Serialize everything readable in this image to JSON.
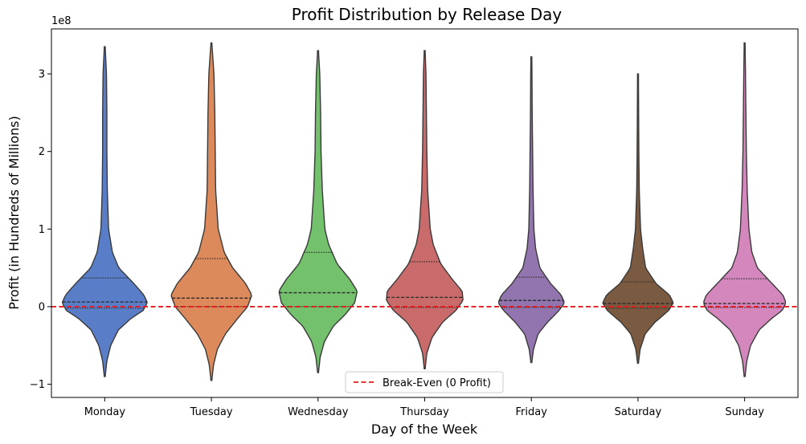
{
  "chart_data": {
    "type": "violin",
    "title": "Profit Distribution by Release Day",
    "xlabel": "Day of the Week",
    "ylabel": "Profit (in Hundreds of Millions)",
    "y_offset_label": "1e8",
    "ylim": [
      -1.17,
      3.58
    ],
    "yticks": [
      -1,
      0,
      1,
      2,
      3
    ],
    "ytick_labels": [
      "−1",
      "0",
      "1",
      "2",
      "3"
    ],
    "grid": false,
    "legend": {
      "position": "bottom-center",
      "entries": [
        {
          "label": "Break-Even (0 Profit)",
          "color": "#e41a1c",
          "style": "dashed"
        }
      ]
    },
    "reference_line": {
      "y": 0,
      "label": "Break-Even (0 Profit)",
      "color": "#e41a1c"
    },
    "categories": [
      "Monday",
      "Tuesday",
      "Wednesday",
      "Thursday",
      "Friday",
      "Saturday",
      "Sunday"
    ],
    "series": [
      {
        "category": "Monday",
        "color": "#5A7DC7",
        "min": -0.9,
        "max": 3.35,
        "q1": -0.02,
        "median": 0.06,
        "q3": 0.37,
        "profile": [
          [
            -0.9,
            0.01
          ],
          [
            -0.7,
            0.05
          ],
          [
            -0.5,
            0.14
          ],
          [
            -0.3,
            0.32
          ],
          [
            -0.15,
            0.62
          ],
          [
            -0.05,
            0.9
          ],
          [
            0.05,
            1.0
          ],
          [
            0.15,
            0.92
          ],
          [
            0.3,
            0.68
          ],
          [
            0.5,
            0.33
          ],
          [
            0.7,
            0.18
          ],
          [
            1.0,
            0.09
          ],
          [
            1.5,
            0.06
          ],
          [
            2.0,
            0.05
          ],
          [
            2.5,
            0.05
          ],
          [
            3.0,
            0.04
          ],
          [
            3.35,
            0.01
          ]
        ]
      },
      {
        "category": "Tuesday",
        "color": "#DC8A5C",
        "min": -0.95,
        "max": 3.4,
        "q1": 0.0,
        "median": 0.11,
        "q3": 0.62,
        "profile": [
          [
            -0.95,
            0.01
          ],
          [
            -0.75,
            0.05
          ],
          [
            -0.55,
            0.14
          ],
          [
            -0.35,
            0.33
          ],
          [
            -0.15,
            0.62
          ],
          [
            0.0,
            0.85
          ],
          [
            0.15,
            0.95
          ],
          [
            0.3,
            0.8
          ],
          [
            0.5,
            0.5
          ],
          [
            0.7,
            0.3
          ],
          [
            1.0,
            0.16
          ],
          [
            1.5,
            0.1
          ],
          [
            2.0,
            0.09
          ],
          [
            2.5,
            0.08
          ],
          [
            3.0,
            0.06
          ],
          [
            3.4,
            0.01
          ]
        ]
      },
      {
        "category": "Wednesday",
        "color": "#73C06D",
        "min": -0.85,
        "max": 3.3,
        "q1": 0.0,
        "median": 0.18,
        "q3": 0.7,
        "profile": [
          [
            -0.85,
            0.01
          ],
          [
            -0.65,
            0.05
          ],
          [
            -0.45,
            0.15
          ],
          [
            -0.25,
            0.36
          ],
          [
            -0.1,
            0.64
          ],
          [
            0.05,
            0.86
          ],
          [
            0.2,
            0.92
          ],
          [
            0.35,
            0.75
          ],
          [
            0.55,
            0.45
          ],
          [
            0.8,
            0.25
          ],
          [
            1.0,
            0.16
          ],
          [
            1.5,
            0.1
          ],
          [
            2.0,
            0.07
          ],
          [
            2.5,
            0.06
          ],
          [
            3.0,
            0.04
          ],
          [
            3.3,
            0.01
          ]
        ]
      },
      {
        "category": "Thursday",
        "color": "#C96B6B",
        "min": -0.8,
        "max": 3.3,
        "q1": -0.01,
        "median": 0.12,
        "q3": 0.58,
        "profile": [
          [
            -0.8,
            0.01
          ],
          [
            -0.6,
            0.05
          ],
          [
            -0.4,
            0.17
          ],
          [
            -0.2,
            0.42
          ],
          [
            -0.05,
            0.73
          ],
          [
            0.08,
            0.9
          ],
          [
            0.2,
            0.88
          ],
          [
            0.35,
            0.65
          ],
          [
            0.55,
            0.38
          ],
          [
            0.8,
            0.2
          ],
          [
            1.0,
            0.13
          ],
          [
            1.5,
            0.07
          ],
          [
            2.0,
            0.05
          ],
          [
            2.5,
            0.04
          ],
          [
            3.0,
            0.03
          ],
          [
            3.3,
            0.01
          ]
        ]
      },
      {
        "category": "Friday",
        "color": "#9275AE",
        "min": -0.72,
        "max": 3.22,
        "q1": -0.01,
        "median": 0.08,
        "q3": 0.38,
        "profile": [
          [
            -0.72,
            0.01
          ],
          [
            -0.55,
            0.05
          ],
          [
            -0.35,
            0.16
          ],
          [
            -0.2,
            0.38
          ],
          [
            -0.05,
            0.65
          ],
          [
            0.05,
            0.78
          ],
          [
            0.15,
            0.7
          ],
          [
            0.3,
            0.45
          ],
          [
            0.5,
            0.2
          ],
          [
            0.75,
            0.1
          ],
          [
            1.0,
            0.06
          ],
          [
            1.5,
            0.04
          ],
          [
            2.0,
            0.03
          ],
          [
            2.5,
            0.02
          ],
          [
            3.0,
            0.015
          ],
          [
            3.22,
            0.01
          ]
        ]
      },
      {
        "category": "Saturday",
        "color": "#7A5A40",
        "min": -0.73,
        "max": 3.02,
        "q1": -0.02,
        "median": 0.04,
        "q3": 0.32,
        "profile": [
          [
            -0.73,
            0.01
          ],
          [
            -0.55,
            0.05
          ],
          [
            -0.35,
            0.17
          ],
          [
            -0.2,
            0.4
          ],
          [
            -0.05,
            0.72
          ],
          [
            0.05,
            0.83
          ],
          [
            0.15,
            0.74
          ],
          [
            0.3,
            0.42
          ],
          [
            0.5,
            0.18
          ],
          [
            0.75,
            0.11
          ],
          [
            1.0,
            0.06
          ],
          [
            1.5,
            0.03
          ],
          [
            2.0,
            0.02
          ],
          [
            2.5,
            0.015
          ],
          [
            3.0,
            0.01
          ]
        ]
      },
      {
        "category": "Sunday",
        "color": "#D487BD",
        "min": -0.9,
        "max": 3.4,
        "q1": -0.01,
        "median": 0.04,
        "q3": 0.36,
        "profile": [
          [
            -0.9,
            0.01
          ],
          [
            -0.7,
            0.05
          ],
          [
            -0.5,
            0.14
          ],
          [
            -0.3,
            0.34
          ],
          [
            -0.15,
            0.64
          ],
          [
            -0.05,
            0.88
          ],
          [
            0.05,
            0.97
          ],
          [
            0.15,
            0.9
          ],
          [
            0.3,
            0.64
          ],
          [
            0.5,
            0.3
          ],
          [
            0.7,
            0.17
          ],
          [
            1.0,
            0.1
          ],
          [
            1.5,
            0.06
          ],
          [
            2.0,
            0.04
          ],
          [
            2.5,
            0.03
          ],
          [
            3.0,
            0.02
          ],
          [
            3.4,
            0.01
          ]
        ]
      }
    ]
  }
}
